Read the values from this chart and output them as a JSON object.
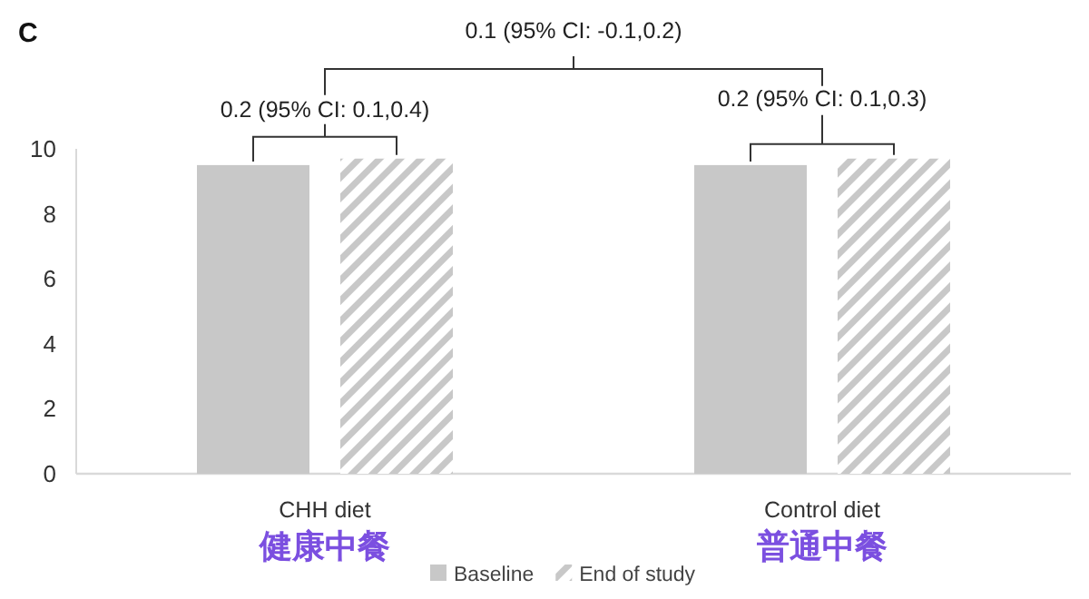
{
  "chart_data": {
    "type": "bar",
    "title": "C",
    "categories": [
      "CHH diet",
      "Control diet"
    ],
    "series": [
      {
        "name": "Baseline",
        "color": "#c8c8c8",
        "values": [
          9.5,
          9.5
        ]
      },
      {
        "name": "End of study",
        "color": "#c8c8c8",
        "values": [
          9.7,
          9.7
        ]
      }
    ],
    "ylim": [
      0,
      10
    ],
    "yticks": [
      0,
      2,
      4,
      6,
      8,
      10
    ],
    "grid": false,
    "legend": "bottom",
    "annotations": [
      "0.1 (95% CI: -0.1,0.2)",
      "0.2 (95% CI: 0.1,0.4)",
      "0.2 (95% CI: 0.1,0.3)",
      "健康中餐",
      "普通中餐"
    ]
  }
}
